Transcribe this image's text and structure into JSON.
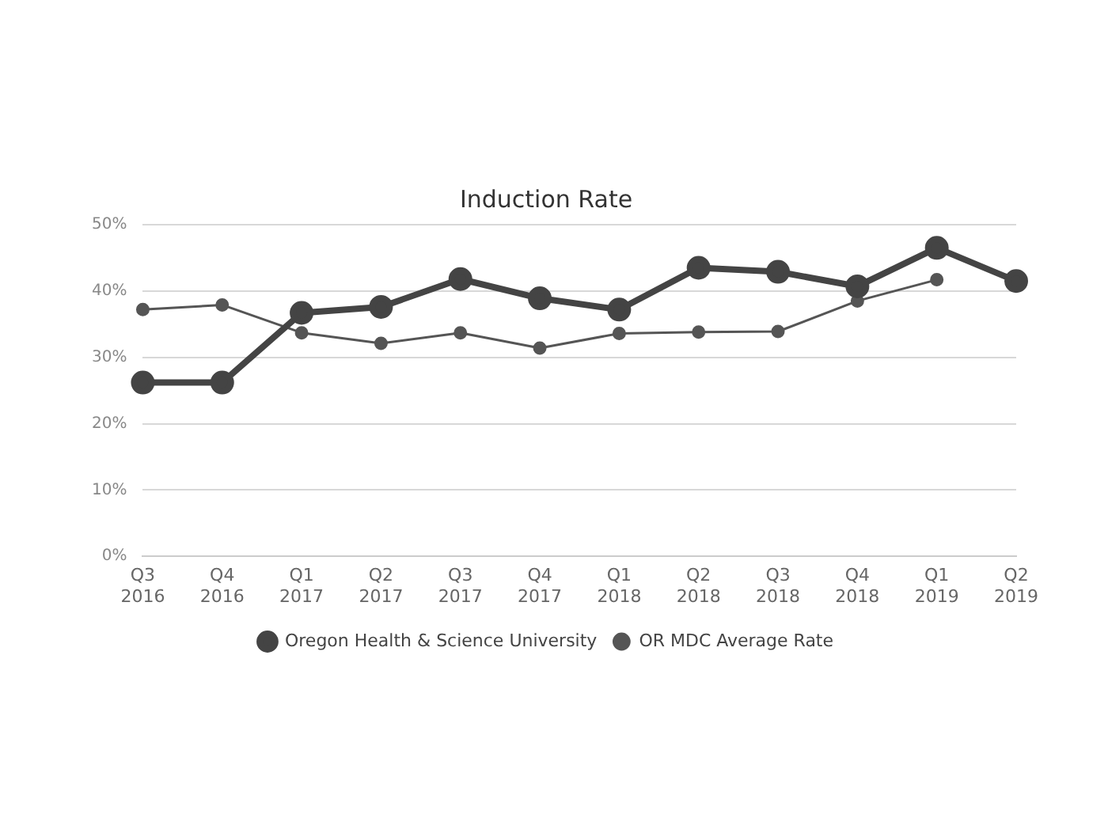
{
  "chart_data": {
    "type": "line",
    "title": "Induction Rate",
    "categories": [
      "Q3 2016",
      "Q4 2016",
      "Q1 2017",
      "Q2 2017",
      "Q3 2017",
      "Q4 2017",
      "Q1 2018",
      "Q2 2018",
      "Q3 2018",
      "Q4 2018",
      "Q1 2019",
      "Q2 2019"
    ],
    "series": [
      {
        "name": "Oregon Health & Science University",
        "color": "#444444",
        "values": [
          26.2,
          26.2,
          36.7,
          37.6,
          41.8,
          38.9,
          37.2,
          43.5,
          42.9,
          40.7,
          46.5,
          41.5
        ]
      },
      {
        "name": "OR MDC Average Rate",
        "color": "#555555",
        "values": [
          37.2,
          37.9,
          33.7,
          32.1,
          33.7,
          31.4,
          33.6,
          33.8,
          33.9,
          38.5,
          41.7,
          null
        ]
      }
    ],
    "ylim": [
      0,
      50
    ],
    "yticks": [
      {
        "value": 0,
        "label": "0%"
      },
      {
        "value": 10,
        "label": "10%"
      },
      {
        "value": 20,
        "label": "20%"
      },
      {
        "value": 30,
        "label": "30%"
      },
      {
        "value": 40,
        "label": "40%"
      },
      {
        "value": 50,
        "label": "50%"
      }
    ],
    "grid": "y",
    "legend": "bottom",
    "marker": "circle",
    "line_style": "solid"
  }
}
